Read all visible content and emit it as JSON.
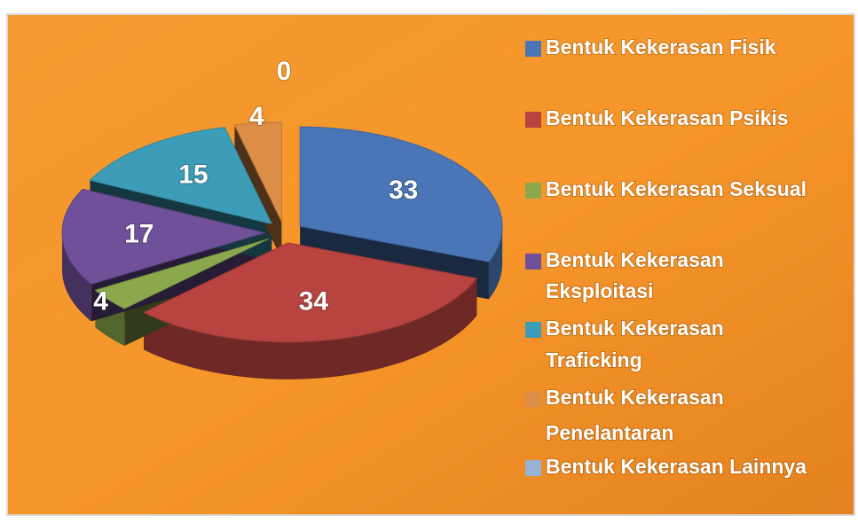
{
  "chart_data": {
    "type": "pie",
    "categories": [
      "Bentuk Kekerasan Fisik",
      "Bentuk Kekerasan Psikis",
      "Bentuk Kekerasan Seksual",
      "Bentuk Kekerasan Eksploitasi",
      "Bentuk Kekerasan Traficking",
      "Bentuk Kekerasan Penelantaran",
      "Bentuk Kekerasan Lainnya"
    ],
    "values": [
      33,
      34,
      4,
      17,
      15,
      4,
      0
    ],
    "colors": [
      "#4a76b8",
      "#b8433f",
      "#8ba84c",
      "#6f5099",
      "#3d9cb7",
      "#dc8d46",
      "#95b3d7"
    ],
    "legend": "right"
  }
}
